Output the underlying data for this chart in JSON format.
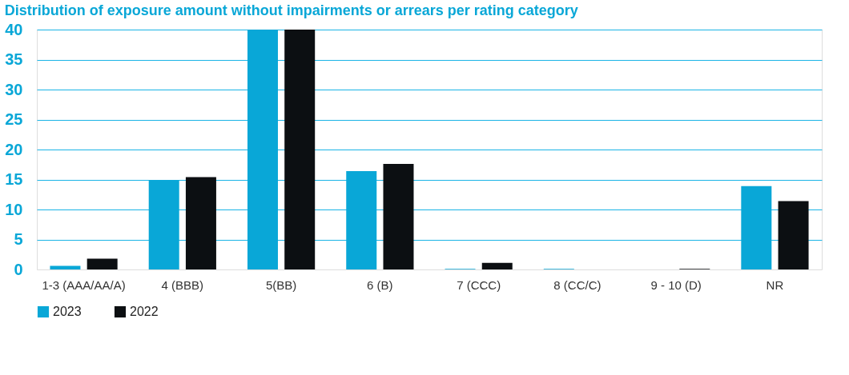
{
  "chart_data": {
    "type": "bar",
    "title": "Distribution of exposure amount without impairments or arrears per rating category",
    "categories": [
      "1-3 (AAA/AA/A)",
      "4 (BBB)",
      "5(BB)",
      "6 (B)",
      "7 (CCC)",
      "8 (CC/C)",
      "9 - 10 (D)",
      "NR"
    ],
    "series": [
      {
        "name": "2023",
        "color": "#09a7d7",
        "values": [
          0.6,
          14.9,
          40,
          16.4,
          0.1,
          0.1,
          0,
          13.9
        ]
      },
      {
        "name": "2022",
        "color": "#0c0f12",
        "values": [
          1.8,
          15.4,
          40,
          17.6,
          1.1,
          0,
          0.1,
          11.4
        ]
      }
    ],
    "ylim": [
      0,
      40
    ],
    "yticks": [
      0,
      5,
      10,
      15,
      20,
      25,
      30,
      35,
      40
    ],
    "grid": "y",
    "legend": "bottom left"
  }
}
